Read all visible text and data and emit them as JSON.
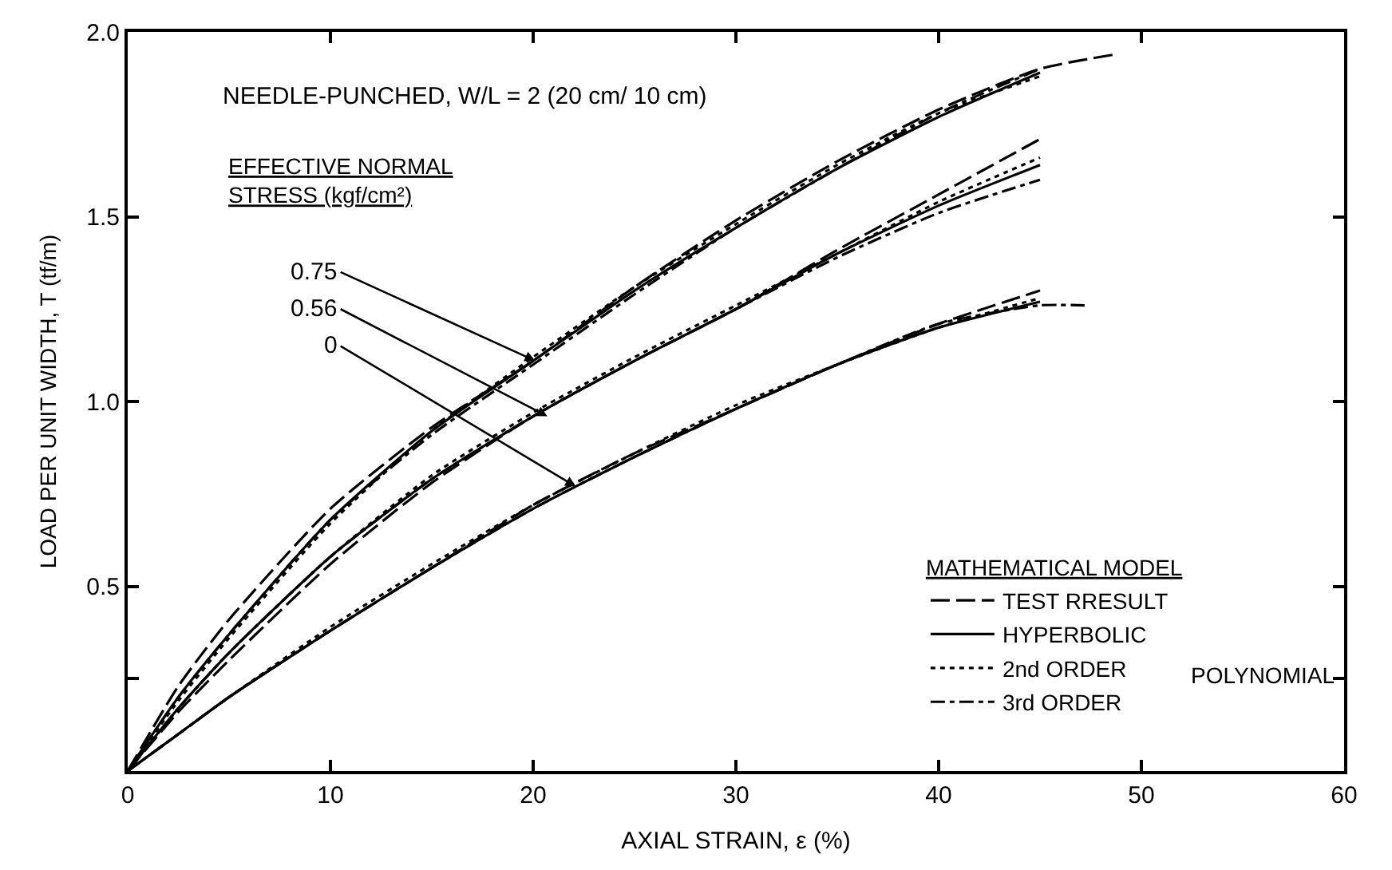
{
  "chart_data": {
    "type": "line",
    "title": "NEEDLE-PUNCHED, W/L = 2 (20 cm/ 10 cm)",
    "xlabel": "AXIAL STRAIN, ε (%)",
    "ylabel": "LOAD PER UNIT WIDTH, T (tf/m)",
    "legend_title": "MATHEMATICAL MODEL",
    "x": [
      0,
      2.5,
      5,
      10,
      15,
      20,
      25,
      30,
      35,
      40,
      45
    ],
    "series": [
      {
        "name": "TEST RRESULT",
        "color": "#000000",
        "line_style": "dashed",
        "x": [
          0,
          2.5,
          5,
          10,
          15,
          20,
          25,
          30,
          35,
          40,
          45,
          48.8
        ],
        "values": [
          0,
          0.23,
          0.41,
          0.71,
          0.93,
          1.11,
          1.31,
          1.49,
          1.65,
          1.79,
          1.9,
          1.94
        ]
      },
      {
        "name": "HYPERBOLIC",
        "color": "#000000",
        "line_style": "solid",
        "values": [
          0,
          0.2,
          0.37,
          0.68,
          0.92,
          1.11,
          1.3,
          1.47,
          1.63,
          1.77,
          1.89
        ]
      },
      {
        "name": "2nd ORDER",
        "color": "#000000",
        "line_style": "dotted",
        "values": [
          0,
          0.19,
          0.36,
          0.67,
          0.92,
          1.12,
          1.31,
          1.48,
          1.64,
          1.78,
          1.88
        ]
      },
      {
        "name": "3rd ORDER",
        "color": "#000000",
        "line_style": "dashdot",
        "values": [
          0,
          0.2,
          0.37,
          0.68,
          0.91,
          1.1,
          1.29,
          1.47,
          1.63,
          1.78,
          1.9
        ]
      },
      {
        "color": "#000000",
        "line_style": "dashed",
        "values": [
          0,
          0.16,
          0.3,
          0.56,
          0.78,
          0.96,
          1.11,
          1.25,
          1.41,
          1.56,
          1.71
        ]
      },
      {
        "color": "#000000",
        "line_style": "solid",
        "values": [
          0,
          0.17,
          0.32,
          0.58,
          0.79,
          0.96,
          1.11,
          1.25,
          1.4,
          1.53,
          1.64
        ]
      },
      {
        "color": "#000000",
        "line_style": "dotted",
        "values": [
          0,
          0.17,
          0.32,
          0.58,
          0.8,
          0.97,
          1.12,
          1.26,
          1.4,
          1.54,
          1.66
        ]
      },
      {
        "color": "#000000",
        "line_style": "dashdot",
        "values": [
          0,
          0.17,
          0.32,
          0.58,
          0.79,
          0.96,
          1.11,
          1.25,
          1.39,
          1.51,
          1.6
        ]
      },
      {
        "color": "#000000",
        "line_style": "dashed",
        "values": [
          0,
          0.1,
          0.2,
          0.38,
          0.55,
          0.72,
          0.86,
          0.98,
          1.1,
          1.21,
          1.3
        ]
      },
      {
        "color": "#000000",
        "line_style": "solid",
        "values": [
          0,
          0.1,
          0.2,
          0.38,
          0.55,
          0.71,
          0.85,
          0.98,
          1.1,
          1.2,
          1.27
        ]
      },
      {
        "color": "#000000",
        "line_style": "dotted",
        "values": [
          0,
          0.1,
          0.2,
          0.39,
          0.56,
          0.72,
          0.86,
          0.99,
          1.1,
          1.2,
          1.28
        ]
      },
      {
        "color": "#000000",
        "line_style": "dashdot",
        "x": [
          0,
          2.5,
          5,
          10,
          15,
          20,
          25,
          30,
          35,
          40,
          45,
          47.2
        ],
        "values": [
          0,
          0.1,
          0.2,
          0.38,
          0.55,
          0.71,
          0.85,
          0.98,
          1.1,
          1.21,
          1.26,
          1.26
        ]
      }
    ],
    "annotations": [
      "EFFECTIVE NORMAL STRESS (kgf/cm²)",
      "POLYNOMIAL",
      {
        "text": "0.75",
        "x": 20.1,
        "y": 1.11
      },
      {
        "text": "0.56",
        "x": 20.7,
        "y": 0.96
      },
      {
        "text": "0",
        "x": 22.1,
        "y": 0.77
      }
    ],
    "xlim": [
      0,
      60
    ],
    "xticks": [
      0,
      10,
      20,
      30,
      40,
      50,
      60
    ],
    "ylim": [
      0,
      2.0
    ],
    "yticks": [
      {
        "value": 0.25,
        "label": null
      },
      {
        "value": 0.5,
        "label": "0.5"
      },
      {
        "value": 1.0,
        "label": "1.0"
      },
      {
        "value": 1.5,
        "label": "1.5"
      },
      {
        "value": 2.0,
        "label": "2.0"
      }
    ],
    "legend": "bottom right",
    "marker": "none"
  }
}
